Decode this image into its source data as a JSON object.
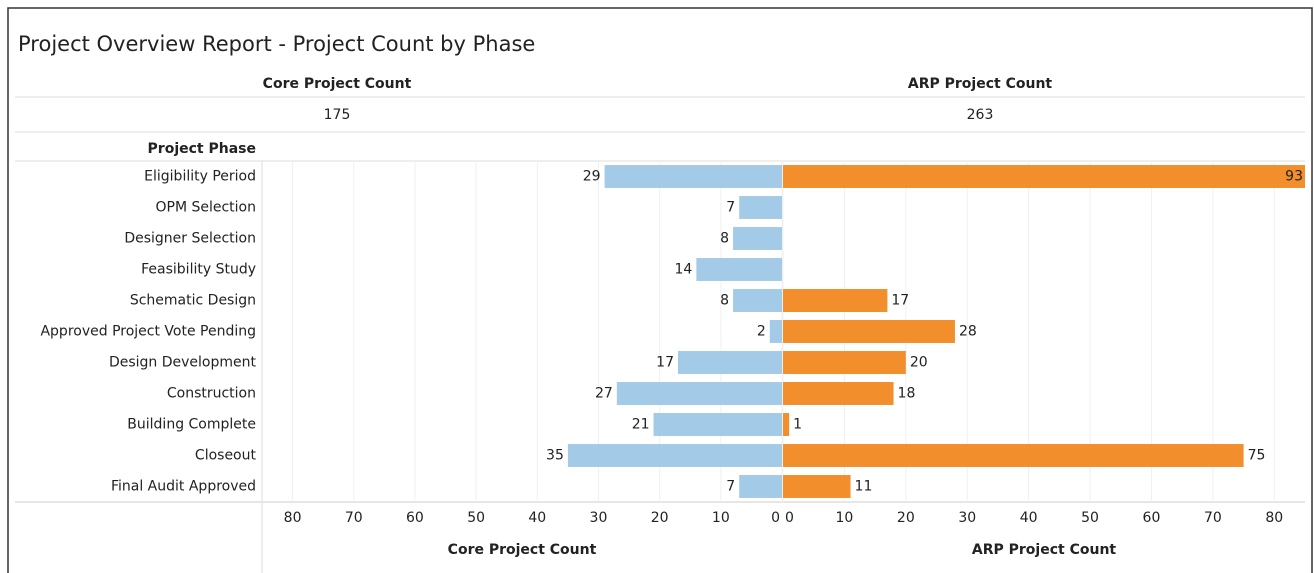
{
  "chart_data": {
    "type": "bar",
    "title": "Project Overview Report - Project Count by Phase",
    "y_label": "Project Phase",
    "categories": [
      "Eligibility Period",
      "OPM Selection",
      "Designer Selection",
      "Feasibility Study",
      "Schematic Design",
      "Approved Project Vote Pending",
      "Design Development",
      "Construction",
      "Building Complete",
      "Closeout",
      "Final Audit Approved"
    ],
    "grid": true,
    "series": [
      {
        "name": "Core Project Count",
        "color": "#a3cbe8",
        "total": 175,
        "reversed": true,
        "values": [
          29,
          7,
          8,
          14,
          8,
          2,
          17,
          27,
          21,
          35,
          7
        ],
        "xlim": [
          0,
          85
        ],
        "xticks": [
          0,
          10,
          20,
          30,
          40,
          50,
          60,
          70,
          80
        ]
      },
      {
        "name": "ARP Project Count",
        "color": "#f28e2b",
        "total": 263,
        "reversed": false,
        "values": [
          93,
          null,
          null,
          null,
          17,
          28,
          20,
          18,
          1,
          75,
          11
        ],
        "xlim": [
          0,
          85
        ],
        "xticks": [
          0,
          10,
          20,
          30,
          40,
          50,
          60,
          70,
          80
        ]
      }
    ]
  }
}
